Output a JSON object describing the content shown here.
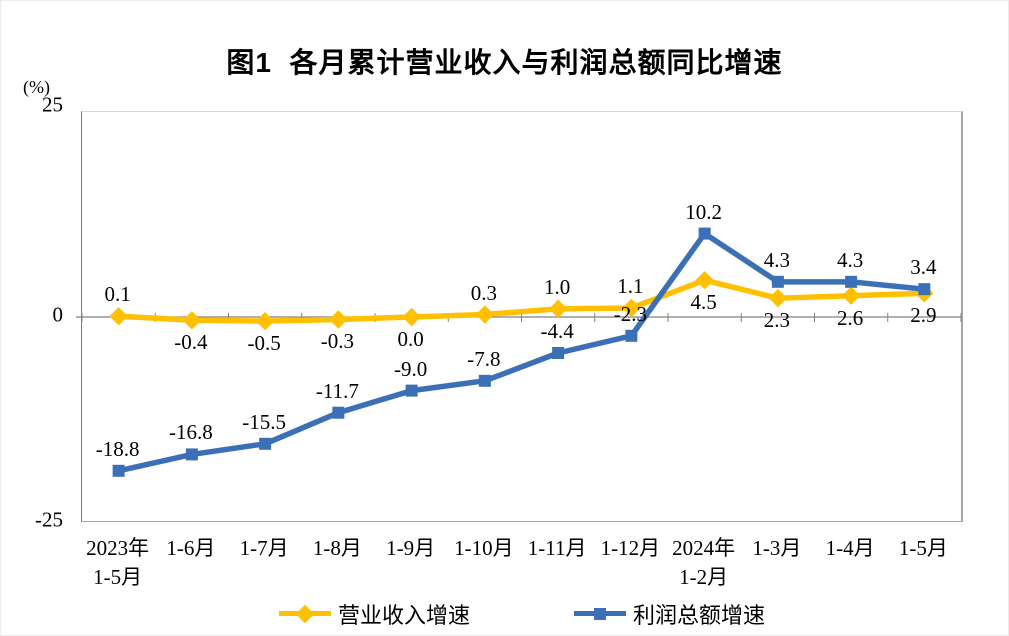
{
  "page": {
    "background": "#ffffff"
  },
  "chart_data": {
    "type": "line",
    "title": "图1  各月累计营业收入与利润总额同比增速",
    "unit_label": "(%)",
    "ylim": [
      -25,
      25
    ],
    "y_ticks": [
      25,
      0,
      -25
    ],
    "y_tick_labels": [
      "25",
      "0",
      "-25"
    ],
    "grid": false,
    "legend_position": "bottom",
    "axis_color": "#808080",
    "categories": [
      [
        "2023年",
        "1-5月"
      ],
      [
        "1-6月"
      ],
      [
        "1-7月"
      ],
      [
        "1-8月"
      ],
      [
        "1-9月"
      ],
      [
        "1-10月"
      ],
      [
        "1-11月"
      ],
      [
        "1-12月"
      ],
      [
        "2024年",
        "1-2月"
      ],
      [
        "1-3月"
      ],
      [
        "1-4月"
      ],
      [
        "1-5月"
      ]
    ],
    "series": [
      {
        "name": "营业收入增速",
        "color": "#FFC000",
        "marker": "diamond",
        "values": [
          0.1,
          -0.4,
          -0.5,
          -0.3,
          0.0,
          0.3,
          1.0,
          1.1,
          4.5,
          2.3,
          2.6,
          2.9
        ],
        "label_positions": [
          "above",
          "below",
          "below",
          "below",
          "below",
          "above",
          "above",
          "above",
          "below",
          "below",
          "below",
          "below"
        ]
      },
      {
        "name": "利润总额增速",
        "color": "#3C70B6",
        "marker": "square",
        "values": [
          -18.8,
          -16.8,
          -15.5,
          -11.7,
          -9.0,
          -7.8,
          -4.4,
          -2.3,
          10.2,
          4.3,
          4.3,
          3.4
        ],
        "label_positions": [
          "above",
          "above",
          "above",
          "above",
          "above",
          "above",
          "above",
          "above",
          "above",
          "above",
          "above",
          "above"
        ]
      }
    ]
  }
}
